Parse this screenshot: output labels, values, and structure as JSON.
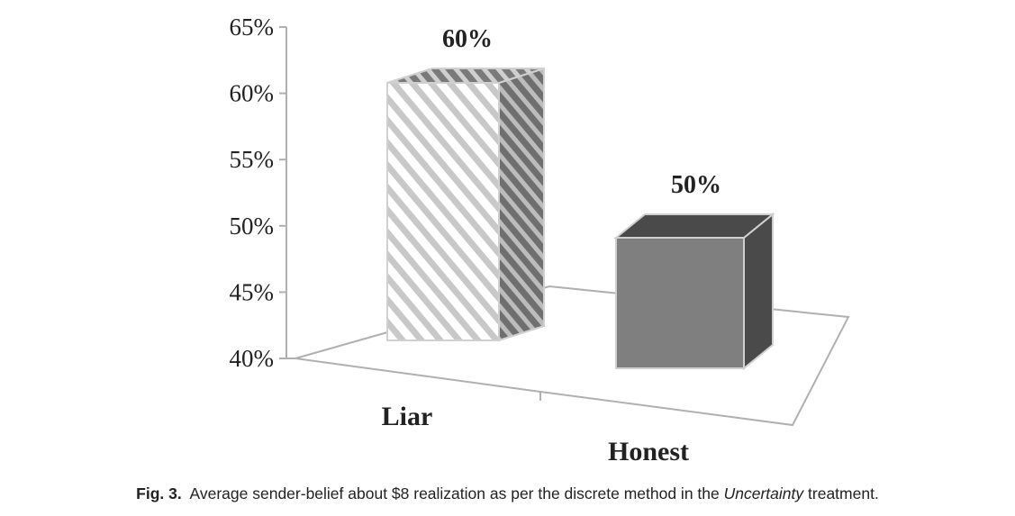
{
  "chart_data": {
    "type": "bar",
    "style": "3d-column",
    "categories": [
      "Liar",
      "Honest"
    ],
    "values": [
      60,
      50
    ],
    "value_unit": "%",
    "data_labels": [
      "60%",
      "50%"
    ],
    "ylim": [
      40,
      65
    ],
    "yticks": [
      40,
      45,
      50,
      55,
      60,
      65
    ],
    "ytick_labels": [
      "40%",
      "45%",
      "50%",
      "55%",
      "60%",
      "65%"
    ],
    "grid": false,
    "legend": "none",
    "bar_fills": [
      "hatched",
      "solid"
    ],
    "colors": {
      "liar_front": "#ffffff",
      "liar_hatch": "#c8c8c8",
      "liar_side": "#6f6f6f",
      "honest_front": "#7f7f7f",
      "honest_top": "#4a4a4a",
      "honest_side": "#4a4a4a",
      "axis": "#b0b0b0"
    }
  },
  "caption": {
    "label": "Fig. 3.",
    "text_before": "Average sender-belief about $8 realization as per the discrete method in the",
    "italic": "Uncertainty",
    "text_after": "treatment."
  }
}
